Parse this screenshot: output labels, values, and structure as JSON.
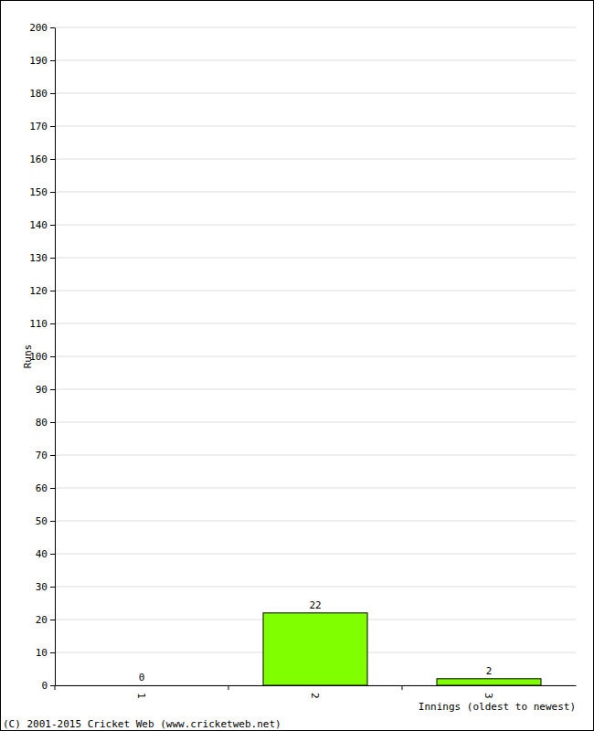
{
  "chart_data": {
    "type": "bar",
    "x_label": "Innings (oldest to newest)",
    "y_label": "Runs",
    "categories": [
      "1",
      "2",
      "3"
    ],
    "values": [
      0,
      22,
      2
    ],
    "color": "#80ff00",
    "ylim": [
      0,
      200
    ],
    "yticks": [
      0,
      10,
      20,
      30,
      40,
      50,
      60,
      70,
      80,
      90,
      100,
      110,
      120,
      130,
      140,
      150,
      160,
      170,
      180,
      190,
      200
    ],
    "grid": true,
    "data_labels": true,
    "annotations": [
      "(C) 2001-2015 Cricket Web (www.cricketweb.net)"
    ]
  }
}
